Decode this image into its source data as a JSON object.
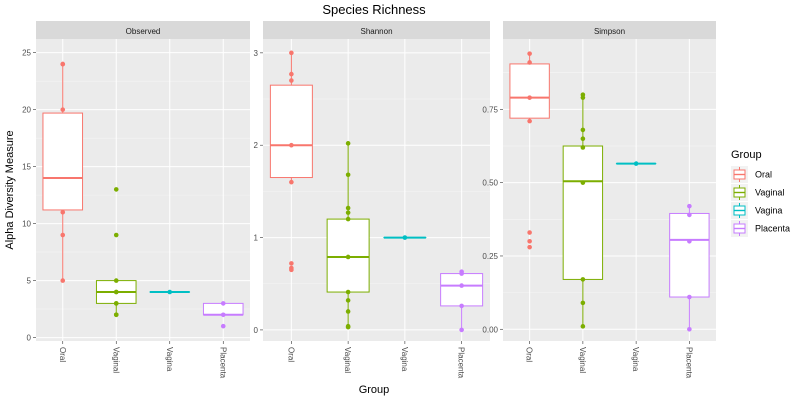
{
  "title": "Species Richness",
  "xlabel": "Group",
  "ylabel": "Alpha Diversity Measure",
  "legend": {
    "title": "Group",
    "placement": "right",
    "items": [
      {
        "label": "Oral",
        "color": "#f8766d"
      },
      {
        "label": "Vaginal",
        "color": "#7cae00"
      },
      {
        "label": "Vagina",
        "color": "#00bfc4"
      },
      {
        "label": "Placenta",
        "color": "#c77cff"
      }
    ]
  },
  "chart_data": [
    {
      "type": "box",
      "title": "Observed",
      "categories": [
        "Oral",
        "Vaginal",
        "Vagina",
        "Placenta"
      ],
      "ylim": [
        -0.3,
        26.2
      ],
      "yticks": [
        0,
        5,
        10,
        15,
        20,
        25
      ],
      "ytick_labels": [
        "0",
        "5",
        "10",
        "15",
        "20",
        "25"
      ],
      "boxes": [
        {
          "q1": 11.2,
          "median": 14,
          "q3": 19.7,
          "whisker_low": 5,
          "whisker_high": 24,
          "points": [
            24,
            24,
            20,
            11,
            9,
            5
          ]
        },
        {
          "q1": 3,
          "median": 4,
          "q3": 5,
          "whisker_low": 2,
          "whisker_high": 5,
          "points": [
            13,
            9,
            5,
            4,
            4,
            3,
            3,
            2,
            2
          ]
        },
        {
          "q1": 4,
          "median": 4,
          "q3": 4,
          "whisker_low": 4,
          "whisker_high": 4,
          "points": [
            4
          ]
        },
        {
          "q1": 2,
          "median": 2,
          "q3": 3,
          "whisker_low": 2,
          "whisker_high": 3,
          "points": [
            3,
            2,
            1
          ]
        }
      ]
    },
    {
      "type": "box",
      "title": "Shannon",
      "categories": [
        "Oral",
        "Vaginal",
        "Vagina",
        "Placenta"
      ],
      "ylim": [
        -0.12,
        3.15
      ],
      "yticks": [
        0,
        1,
        2,
        3
      ],
      "ytick_labels": [
        "0",
        "1",
        "2",
        "3"
      ],
      "boxes": [
        {
          "q1": 1.65,
          "median": 2.0,
          "q3": 2.65,
          "whisker_low": 1.6,
          "whisker_high": 3.0,
          "points": [
            3.0,
            2.77,
            2.7,
            2.0,
            1.6,
            0.72,
            0.67,
            0.65
          ]
        },
        {
          "q1": 0.41,
          "median": 0.79,
          "q3": 1.2,
          "whisker_low": 0.03,
          "whisker_high": 2.02,
          "points": [
            2.02,
            1.68,
            1.32,
            1.27,
            1.2,
            0.79,
            0.41,
            0.32,
            0.2,
            0.04,
            0.03
          ]
        },
        {
          "q1": 1.0,
          "median": 1.0,
          "q3": 1.0,
          "whisker_low": 1.0,
          "whisker_high": 1.0,
          "points": [
            1.0
          ]
        },
        {
          "q1": 0.26,
          "median": 0.48,
          "q3": 0.61,
          "whisker_low": 0.0,
          "whisker_high": 0.63,
          "points": [
            0.63,
            0.61,
            0.48,
            0.26,
            0.0
          ]
        }
      ]
    },
    {
      "type": "box",
      "title": "Simpson",
      "categories": [
        "Oral",
        "Vaginal",
        "Vagina",
        "Placenta"
      ],
      "ylim": [
        -0.04,
        0.99
      ],
      "yticks": [
        0,
        0.25,
        0.5,
        0.75
      ],
      "ytick_labels": [
        "0.00",
        "0.25",
        "0.50",
        "0.75"
      ],
      "boxes": [
        {
          "q1": 0.72,
          "median": 0.79,
          "q3": 0.905,
          "whisker_low": 0.71,
          "whisker_high": 0.94,
          "points": [
            0.94,
            0.91,
            0.79,
            0.71,
            0.33,
            0.3,
            0.28
          ]
        },
        {
          "q1": 0.17,
          "median": 0.505,
          "q3": 0.625,
          "whisker_low": 0.01,
          "whisker_high": 0.8,
          "points": [
            0.8,
            0.79,
            0.68,
            0.65,
            0.62,
            0.5,
            0.17,
            0.09,
            0.01
          ]
        },
        {
          "q1": 0.565,
          "median": 0.565,
          "q3": 0.565,
          "whisker_low": 0.565,
          "whisker_high": 0.565,
          "points": [
            0.565
          ]
        },
        {
          "q1": 0.11,
          "median": 0.305,
          "q3": 0.395,
          "whisker_low": 0.0,
          "whisker_high": 0.42,
          "points": [
            0.42,
            0.39,
            0.3,
            0.11,
            0.0
          ]
        }
      ]
    }
  ]
}
